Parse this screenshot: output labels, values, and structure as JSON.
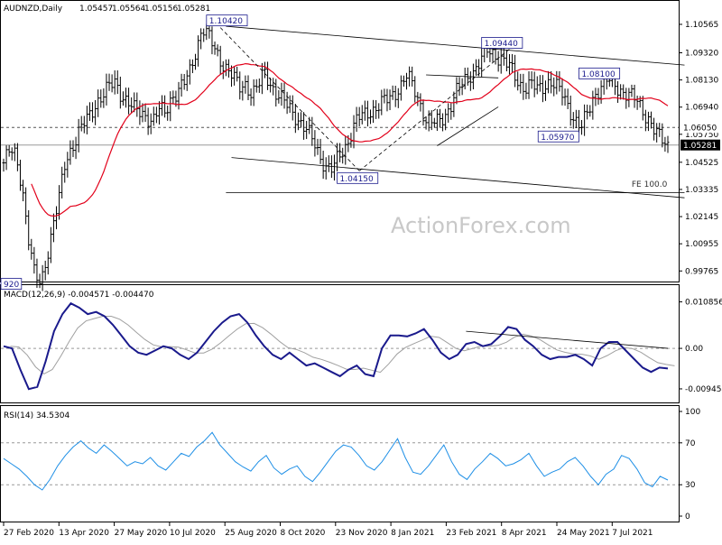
{
  "chart_data": [
    {
      "panel": "price",
      "type": "ohlc",
      "header": {
        "symbol": "AUDNZD,Daily",
        "open": "1.05457",
        "high": "1.05564",
        "low": "1.05156",
        "close": "1.05281"
      },
      "y_ticks": [
        "1.10565",
        "1.09320",
        "1.08130",
        "1.06940",
        "1.05750",
        "1.04525",
        "1.03335",
        "1.02145",
        "1.00955",
        "0.99765"
      ],
      "ylim": [
        0.9946,
        1.1092
      ],
      "current_price_label": "1.05281",
      "reference_price_label": "1.06050",
      "x_ticks": [
        "27 Feb 2020",
        "13 Apr 2020",
        "27 May 2020",
        "10 Jul 2020",
        "25 Aug 2020",
        "8 Oct 2020",
        "23 Nov 2020",
        "8 Jan 2021",
        "23 Feb 2021",
        "8 Apr 2021",
        "24 May 2021",
        "7 Jul 2021"
      ],
      "annotations": [
        {
          "label": "1.10420",
          "value": 1.1042
        },
        {
          "label": "1.09440",
          "value": 1.0944
        },
        {
          "label": "1.08100",
          "value": 1.081
        },
        {
          "label": "1.05970",
          "value": 1.0597
        },
        {
          "label": "1.04150",
          "value": 1.0415
        },
        {
          "label": "920",
          "value": 0.992
        },
        {
          "label": "FE 100.0",
          "value": 1.0335
        }
      ],
      "close_series_approx": [
        1.045,
        1.05,
        1.048,
        1.035,
        1.012,
        0.995,
        0.992,
        1.005,
        1.018,
        1.03,
        1.046,
        1.052,
        1.058,
        1.062,
        1.066,
        1.072,
        1.075,
        1.078,
        1.08,
        1.075,
        1.072,
        1.068,
        1.067,
        1.066,
        1.063,
        1.068,
        1.067,
        1.074,
        1.076,
        1.079,
        1.085,
        1.095,
        1.1042,
        1.1,
        1.095,
        1.09,
        1.086,
        1.082,
        1.078,
        1.08,
        1.075,
        1.078,
        1.085,
        1.08,
        1.075,
        1.072,
        1.069,
        1.066,
        1.062,
        1.058,
        1.054,
        1.048,
        1.043,
        1.0415,
        1.048,
        1.052,
        1.058,
        1.064,
        1.066,
        1.068,
        1.069,
        1.071,
        1.073,
        1.076,
        1.079,
        1.083,
        1.078,
        1.072,
        1.064,
        1.062,
        1.063,
        1.066,
        1.07,
        1.076,
        1.08,
        1.084,
        1.086,
        1.09,
        1.0944,
        1.093,
        1.091,
        1.088,
        1.085,
        1.08,
        1.078,
        1.079,
        1.077,
        1.079,
        1.081,
        1.078,
        1.075,
        1.07,
        1.064,
        1.0597,
        1.066,
        1.074,
        1.078,
        1.081,
        1.08,
        1.078,
        1.076,
        1.074,
        1.072,
        1.068,
        1.064,
        1.058,
        1.055,
        1.0528
      ],
      "series": [
        {
          "name": "MA",
          "color": "#e2001a"
        }
      ],
      "trendlines_color": "#000000",
      "watermark": "ActionForex.com"
    },
    {
      "panel": "macd",
      "type": "line",
      "header": "MACD(12,26,9) -0.004571 -0.004470",
      "y_ticks": [
        "0.010856",
        "0.00",
        "-0.009454"
      ],
      "ylim": [
        -0.0122,
        0.0135
      ],
      "series": [
        {
          "name": "MACD",
          "color": "#1a1a8c",
          "values_approx": [
            0.0005,
            0.0,
            -0.005,
            -0.0095,
            -0.009,
            -0.003,
            0.004,
            0.008,
            0.0105,
            0.0095,
            0.008,
            0.0085,
            0.0075,
            0.0055,
            0.003,
            0.0005,
            -0.001,
            -0.0015,
            -0.0005,
            0.0005,
            0.0,
            -0.0015,
            -0.0025,
            -0.001,
            0.0015,
            0.004,
            0.006,
            0.0075,
            0.008,
            0.006,
            0.003,
            0.0005,
            -0.0015,
            -0.0025,
            -0.001,
            -0.0025,
            -0.004,
            -0.0035,
            -0.0045,
            -0.0055,
            -0.0065,
            -0.005,
            -0.004,
            -0.006,
            -0.0065,
            0.0,
            0.003,
            0.003,
            0.0028,
            0.0035,
            0.0045,
            0.002,
            -0.001,
            -0.0025,
            -0.0015,
            0.001,
            0.0015,
            0.0005,
            0.001,
            0.0028,
            0.005,
            0.0045,
            0.002,
            0.0005,
            -0.0015,
            -0.0025,
            -0.002,
            -0.002,
            -0.0015,
            -0.0025,
            -0.004,
            0.0,
            0.0015,
            0.0015,
            -0.0005,
            -0.0025,
            -0.0045,
            -0.0055,
            -0.0045,
            -0.0047
          ]
        },
        {
          "name": "Signal",
          "color": "#a0a0a0"
        }
      ],
      "trendline": true
    },
    {
      "panel": "rsi",
      "type": "line",
      "header": "RSI(14) 34.5304",
      "y_ticks": [
        "100",
        "70",
        "30",
        "0"
      ],
      "ylim": [
        0,
        100
      ],
      "levels": [
        70,
        30
      ],
      "series": [
        {
          "name": "RSI",
          "color": "#1e8fe6",
          "values_approx": [
            55,
            50,
            45,
            38,
            30,
            25,
            35,
            48,
            58,
            66,
            72,
            65,
            60,
            68,
            62,
            55,
            48,
            52,
            50,
            56,
            48,
            44,
            52,
            60,
            57,
            66,
            72,
            80,
            68,
            60,
            52,
            47,
            43,
            52,
            58,
            46,
            40,
            45,
            48,
            38,
            33,
            42,
            52,
            62,
            68,
            66,
            58,
            48,
            44,
            52,
            63,
            74,
            56,
            42,
            40,
            48,
            58,
            68,
            52,
            40,
            35,
            45,
            52,
            60,
            55,
            48,
            50,
            54,
            60,
            48,
            38,
            42,
            45,
            52,
            56,
            48,
            38,
            30,
            40,
            45,
            58,
            55,
            45,
            32,
            28,
            38,
            34.5
          ]
        }
      ]
    }
  ]
}
